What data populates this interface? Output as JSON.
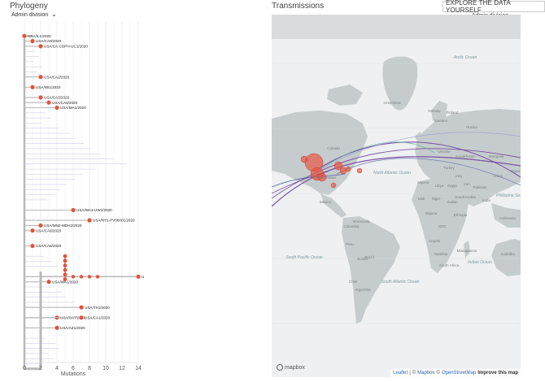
{
  "phylogeny": {
    "title": "Phylogeny",
    "color_by": "Admin division",
    "xaxis_label": "Mutations",
    "ticks": [
      "0",
      "2",
      "4",
      "6",
      "8",
      "10",
      "12",
      "14"
    ],
    "tips": [
      {
        "label": "USA/IL1/2020",
        "mut": 0,
        "row": 1
      },
      {
        "label": "USA/CA9/2020",
        "mut": 1,
        "row": 2
      },
      {
        "label": "USA/CA-CDPH-UC1/2020",
        "mut": 2,
        "row": 3
      },
      {
        "label": "USA/CA2/2020",
        "mut": 2,
        "row": 9
      },
      {
        "label": "USA/WI1/2020",
        "mut": 1,
        "row": 11
      },
      {
        "label": "USA/CA3/2020",
        "mut": 2,
        "row": 13
      },
      {
        "label": "USA/CA5/2020",
        "mut": 3,
        "row": 14
      },
      {
        "label": "USA/MA1/2020",
        "mut": 4,
        "row": 15
      },
      {
        "label": "USA/WA3-UW1/2020",
        "mut": 6,
        "row": 35
      },
      {
        "label": "USA/NY1-PV08001/2020",
        "mut": 8,
        "row": 37
      },
      {
        "label": "USA/MN2-MDH2/2020",
        "mut": 2,
        "row": 38
      },
      {
        "label": "USA/CA6/2020",
        "mut": 1,
        "row": 39
      },
      {
        "label": "USA/CA8/2020",
        "mut": 1,
        "row": 42
      },
      {
        "label": "USA/WA1/2020",
        "mut": 3,
        "row": 49
      },
      {
        "label": "USA/TX1/2020",
        "mut": 7,
        "row": 54
      },
      {
        "label": "USA/CA7/2020",
        "mut": 4,
        "row": 56
      },
      {
        "label": "USA/CA1/2020",
        "mut": 7,
        "row": 56
      },
      {
        "label": "USA/AZ1/2020",
        "mut": 4,
        "row": 58
      },
      {
        "label": "U",
        "mut": 14,
        "row": 48
      }
    ]
  },
  "transmissions": {
    "title": "Transmissions",
    "explore_button": "EXPLORE THE DATA YOURSELF",
    "color_by": "Admin division",
    "map_labels": [
      {
        "text": "Arctic Ocean",
        "kind": "ocean"
      },
      {
        "text": "Greenland",
        "kind": "land"
      },
      {
        "text": "Canada",
        "kind": "land"
      },
      {
        "text": "North Atlantic Ocean",
        "kind": "ocean"
      },
      {
        "text": "United States",
        "kind": "land"
      },
      {
        "text": "Mexico",
        "kind": "land"
      },
      {
        "text": "Brazil",
        "kind": "land"
      },
      {
        "text": "South Pacific Ocean",
        "kind": "ocean"
      },
      {
        "text": "South Atlantic Ocean",
        "kind": "ocean"
      },
      {
        "text": "Russia",
        "kind": "land"
      },
      {
        "text": "Kazakhstan",
        "kind": "land"
      },
      {
        "text": "Mongolia",
        "kind": "land"
      },
      {
        "text": "China",
        "kind": "land"
      },
      {
        "text": "India",
        "kind": "land"
      },
      {
        "text": "Iran",
        "kind": "land"
      },
      {
        "text": "Algeria",
        "kind": "land"
      },
      {
        "text": "Libya",
        "kind": "land"
      },
      {
        "text": "Egypt",
        "kind": "land"
      },
      {
        "text": "Mali",
        "kind": "land"
      },
      {
        "text": "Niger",
        "kind": "land"
      },
      {
        "text": "Sudan",
        "kind": "land"
      },
      {
        "text": "Nigeria",
        "kind": "land"
      },
      {
        "text": "Ethiopia",
        "kind": "land"
      },
      {
        "text": "DRC",
        "kind": "land"
      },
      {
        "text": "Angola",
        "kind": "land"
      },
      {
        "text": "Namibia",
        "kind": "land"
      },
      {
        "text": "South Africa",
        "kind": "land"
      },
      {
        "text": "Madagascar",
        "kind": "land"
      },
      {
        "text": "Indian Ocean",
        "kind": "ocean"
      },
      {
        "text": "Australia",
        "kind": "land"
      },
      {
        "text": "Indonesia",
        "kind": "land"
      },
      {
        "text": "Norway",
        "kind": "land"
      },
      {
        "text": "Sweden",
        "kind": "land"
      },
      {
        "text": "Finland",
        "kind": "land"
      },
      {
        "text": "Saudi Arabia",
        "kind": "land"
      },
      {
        "text": "Pakistan",
        "kind": "land"
      },
      {
        "text": "Bolivia",
        "kind": "land"
      },
      {
        "text": "Peru",
        "kind": "land"
      },
      {
        "text": "Colombia",
        "kind": "land"
      },
      {
        "text": "Argentina",
        "kind": "land"
      },
      {
        "text": "Chile",
        "kind": "land"
      },
      {
        "text": "Venezuela",
        "kind": "land"
      },
      {
        "text": "Turkey",
        "kind": "land"
      },
      {
        "text": "Japan",
        "kind": "land"
      },
      {
        "text": "Philippine Sea",
        "kind": "ocean"
      },
      {
        "text": "Ukraine",
        "kind": "land"
      },
      {
        "text": "Iraq",
        "kind": "land"
      }
    ],
    "mapbox_logo": "mapbox",
    "attribution": {
      "leaflet": "Leaflet",
      "sep1": "|",
      "copyright1": "©",
      "mapbox": "Mapbox",
      "copyright2": "©",
      "osm": "OpenStreetMap",
      "improve": "Improve this map"
    }
  },
  "colors": {
    "tip": "#e8503a",
    "branch": "#b8b8b8",
    "branch_light": "#c9c3e0",
    "water": "#eef0f1",
    "land": "#c6cccd",
    "purple": "#6a3d9a",
    "teal": "#6ab0a6"
  }
}
